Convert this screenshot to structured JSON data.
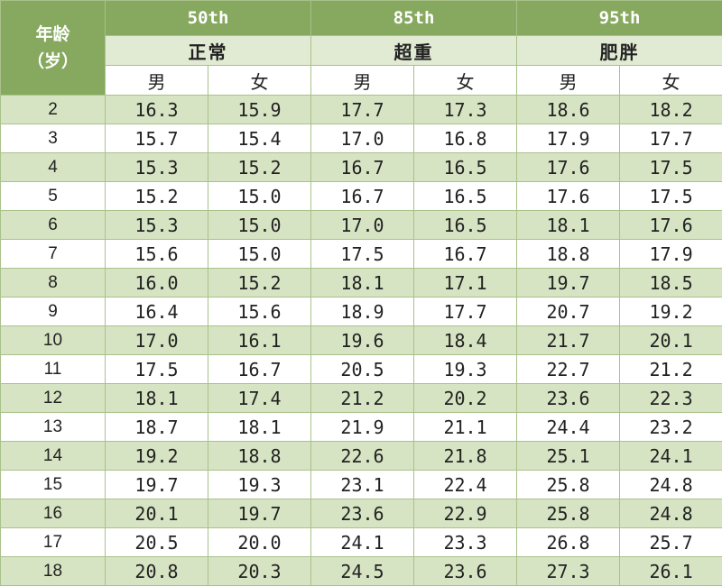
{
  "header": {
    "age_line1": "年龄",
    "age_line2": "（岁）",
    "groups": [
      {
        "percentile": "50th",
        "category": "正常"
      },
      {
        "percentile": "85th",
        "category": "超重"
      },
      {
        "percentile": "95th",
        "category": "肥胖"
      }
    ],
    "male": "男",
    "female": "女"
  },
  "rows": [
    {
      "age": "2",
      "values": [
        "16.3",
        "15.9",
        "17.7",
        "17.3",
        "18.6",
        "18.2"
      ]
    },
    {
      "age": "3",
      "values": [
        "15.7",
        "15.4",
        "17.0",
        "16.8",
        "17.9",
        "17.7"
      ]
    },
    {
      "age": "4",
      "values": [
        "15.3",
        "15.2",
        "16.7",
        "16.5",
        "17.6",
        "17.5"
      ]
    },
    {
      "age": "5",
      "values": [
        "15.2",
        "15.0",
        "16.7",
        "16.5",
        "17.6",
        "17.5"
      ]
    },
    {
      "age": "6",
      "values": [
        "15.3",
        "15.0",
        "17.0",
        "16.5",
        "18.1",
        "17.6"
      ]
    },
    {
      "age": "7",
      "values": [
        "15.6",
        "15.0",
        "17.5",
        "16.7",
        "18.8",
        "17.9"
      ]
    },
    {
      "age": "8",
      "values": [
        "16.0",
        "15.2",
        "18.1",
        "17.1",
        "19.7",
        "18.5"
      ]
    },
    {
      "age": "9",
      "values": [
        "16.4",
        "15.6",
        "18.9",
        "17.7",
        "20.7",
        "19.2"
      ]
    },
    {
      "age": "10",
      "values": [
        "17.0",
        "16.1",
        "19.6",
        "18.4",
        "21.7",
        "20.1"
      ]
    },
    {
      "age": "11",
      "values": [
        "17.5",
        "16.7",
        "20.5",
        "19.3",
        "22.7",
        "21.2"
      ]
    },
    {
      "age": "12",
      "values": [
        "18.1",
        "17.4",
        "21.2",
        "20.2",
        "23.6",
        "22.3"
      ]
    },
    {
      "age": "13",
      "values": [
        "18.7",
        "18.1",
        "21.9",
        "21.1",
        "24.4",
        "23.2"
      ]
    },
    {
      "age": "14",
      "values": [
        "19.2",
        "18.8",
        "22.6",
        "21.8",
        "25.1",
        "24.1"
      ]
    },
    {
      "age": "15",
      "values": [
        "19.7",
        "19.3",
        "23.1",
        "22.4",
        "25.8",
        "24.8"
      ]
    },
    {
      "age": "16",
      "values": [
        "20.1",
        "19.7",
        "23.6",
        "22.9",
        "25.8",
        "24.8"
      ]
    },
    {
      "age": "17",
      "values": [
        "20.5",
        "20.0",
        "24.1",
        "23.3",
        "26.8",
        "25.7"
      ]
    },
    {
      "age": "18",
      "values": [
        "20.8",
        "20.3",
        "24.5",
        "23.6",
        "27.3",
        "26.1"
      ]
    }
  ],
  "colors": {
    "header": "#87a95f",
    "subheader": "#e1ebd3",
    "stripe": "#d7e4c3",
    "border": "#a9c18a"
  }
}
